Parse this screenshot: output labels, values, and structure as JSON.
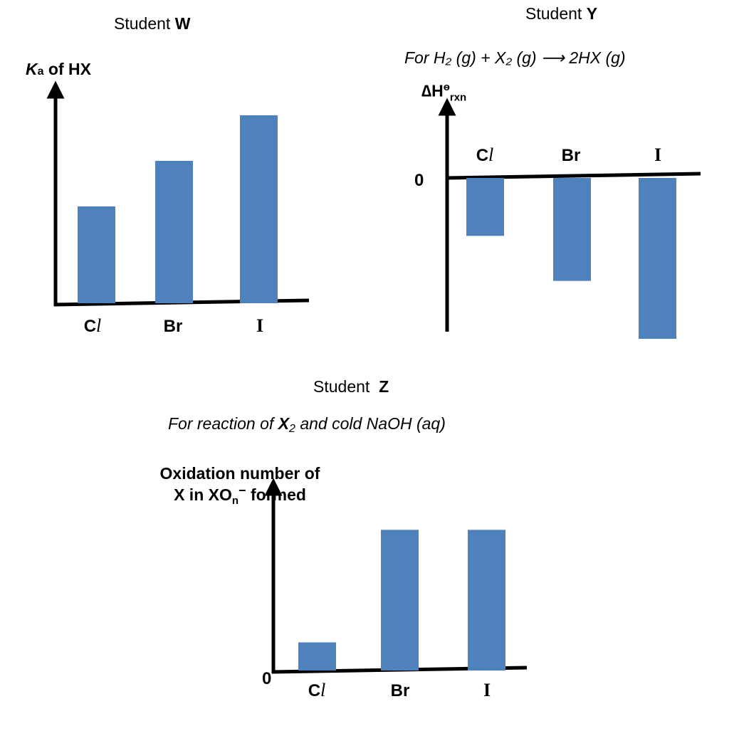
{
  "chart_data": [
    {
      "type": "bar",
      "student_prefix": "Student",
      "student": "W",
      "subtitle": "",
      "ylabel_italic": "K",
      "ylabel_sub": "a",
      "ylabel_rest": " of HX",
      "categories": [
        "Cl",
        "Br",
        "I"
      ],
      "values": [
        0.34,
        0.5,
        0.66
      ],
      "ylim": [
        0,
        1
      ],
      "grid": false
    },
    {
      "type": "bar",
      "student_prefix": "Student",
      "student": "Y",
      "subtitle": "For H₂ (g) + X₂ (g) ⟶ 2HX (g)",
      "ylabel_main": "∆H",
      "ylabel_sup": "ө",
      "ylabel_sub": "rxn",
      "zero_label": "0",
      "categories": [
        "Cl",
        "Br",
        "I"
      ],
      "values": [
        -0.36,
        -0.64,
        -1.0
      ],
      "ylim": [
        -1.05,
        0.45
      ],
      "grid": false
    },
    {
      "type": "bar",
      "student_prefix": "Student",
      "student": "Z",
      "subtitle_pre": "For reaction of ",
      "subtitle_x": "X",
      "subtitle_x_sub": "2",
      "subtitle_post": " and cold NaOH (aq)",
      "ylabel_line1": "Oxidation number of",
      "ylabel_line2_pre": "X in XO",
      "ylabel_line2_sub": "n",
      "ylabel_line2_sup": "−",
      "ylabel_line2_post": " formed",
      "zero_label": "0",
      "categories": [
        "Cl",
        "Br",
        "I"
      ],
      "values": [
        1,
        5,
        5
      ],
      "ylim": [
        0,
        6.4
      ],
      "grid": false
    }
  ]
}
